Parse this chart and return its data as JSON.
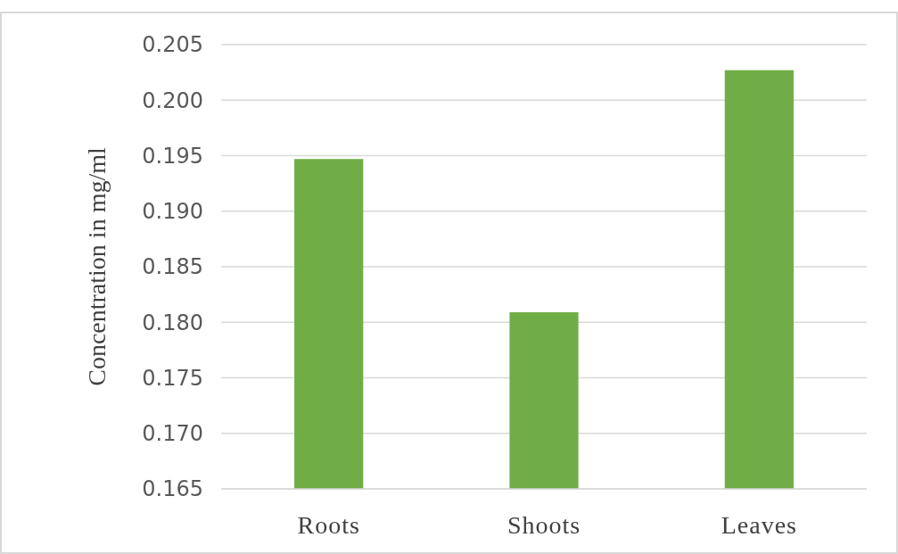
{
  "chart_data": {
    "type": "bar",
    "ylabel": "Concentration in mg/ml",
    "categories": [
      "Roots",
      "Shoots",
      "Leaves"
    ],
    "values": [
      0.1947,
      0.1809,
      0.2027
    ],
    "color": "#70ad47",
    "ylim": [
      0.165,
      0.205
    ],
    "yticks": [
      {
        "value": 0.165,
        "label": "0.165"
      },
      {
        "value": 0.17,
        "label": "0.170"
      },
      {
        "value": 0.175,
        "label": "0.175"
      },
      {
        "value": 0.18,
        "label": "0.180"
      },
      {
        "value": 0.185,
        "label": "0.185"
      },
      {
        "value": 0.19,
        "label": "0.190"
      },
      {
        "value": 0.195,
        "label": "0.195"
      },
      {
        "value": 0.2,
        "label": "0.200"
      },
      {
        "value": 0.205,
        "label": "0.205"
      }
    ],
    "grid": "y"
  }
}
